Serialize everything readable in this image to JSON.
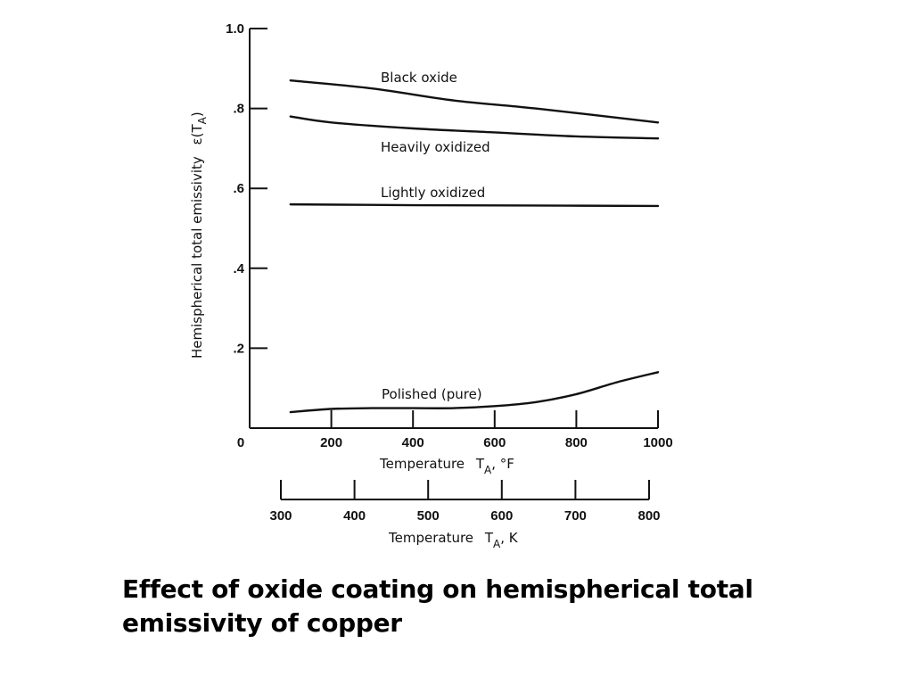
{
  "caption": "Effect of oxide coating on hemispherical total emissivity of copper",
  "chart_data": {
    "type": "line",
    "ylabel": "Hemispherical total emissivity",
    "ylabel_symbol": "ε(T",
    "ylabel_sub": "A",
    "ylabel_close": ")",
    "xlabel_primary": "Temperature",
    "xlabel_primary_symbol": "T",
    "xlabel_primary_sub": "A",
    "xlabel_primary_unit": ",  °F",
    "xlabel_secondary": "Temperature",
    "xlabel_secondary_symbol": "T",
    "xlabel_secondary_sub": "A",
    "xlabel_secondary_unit": ",  K",
    "xlim": [
      0,
      1000
    ],
    "ylim": [
      0,
      1.0
    ],
    "x_ticks": [
      0,
      200,
      400,
      600,
      800,
      1000
    ],
    "x_tick_labels": [
      "0",
      "200",
      "400",
      "600",
      "800",
      "1000"
    ],
    "y_ticks": [
      0.2,
      0.4,
      0.6,
      0.8,
      1.0
    ],
    "y_tick_labels": [
      ".2",
      ".4",
      ".6",
      ".8",
      "1.0"
    ],
    "k_ticks": [
      300,
      400,
      500,
      600,
      700,
      800
    ],
    "k_tick_labels": [
      "300",
      "400",
      "500",
      "600",
      "700",
      "800"
    ],
    "grid": false,
    "series": [
      {
        "name": "Black oxide",
        "x": [
          100,
          300,
          500,
          700,
          1000
        ],
        "y": [
          0.87,
          0.85,
          0.82,
          0.8,
          0.765
        ]
      },
      {
        "name": "Heavily oxidized",
        "x": [
          100,
          200,
          400,
          600,
          800,
          1000
        ],
        "y": [
          0.78,
          0.765,
          0.75,
          0.74,
          0.73,
          0.725
        ]
      },
      {
        "name": "Lightly oxidized",
        "x": [
          100,
          400,
          700,
          1000
        ],
        "y": [
          0.56,
          0.558,
          0.557,
          0.556
        ]
      },
      {
        "name": "Polished (pure)",
        "x": [
          100,
          200,
          300,
          400,
          500,
          600,
          700,
          800,
          900,
          1000
        ],
        "y": [
          0.04,
          0.048,
          0.05,
          0.05,
          0.05,
          0.055,
          0.065,
          0.085,
          0.115,
          0.14
        ]
      }
    ]
  }
}
